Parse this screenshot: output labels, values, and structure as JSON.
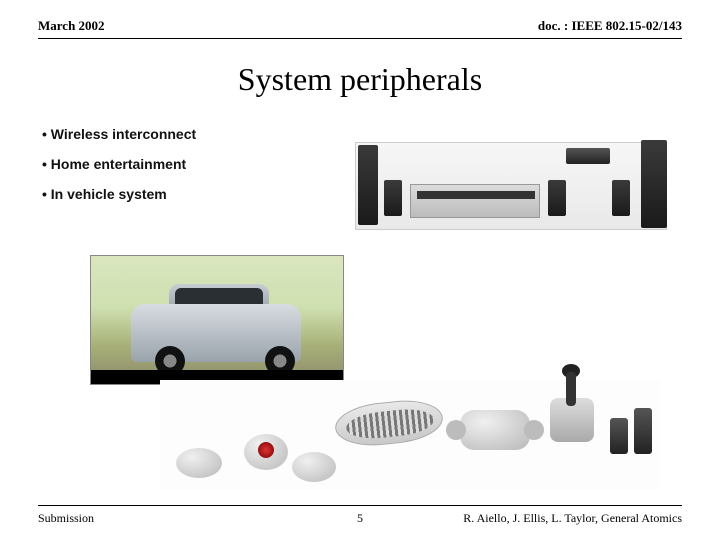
{
  "header": {
    "date": "March 2002",
    "docref": "doc. : IEEE 802.15-02/143"
  },
  "title": "System peripherals",
  "bullets": [
    "Wireless interconnect",
    "Home entertainment",
    "In vehicle system"
  ],
  "footer": {
    "left": "Submission",
    "page": "5",
    "right": "R. Aiello, J. Ellis, L. Taylor, General Atomics"
  }
}
